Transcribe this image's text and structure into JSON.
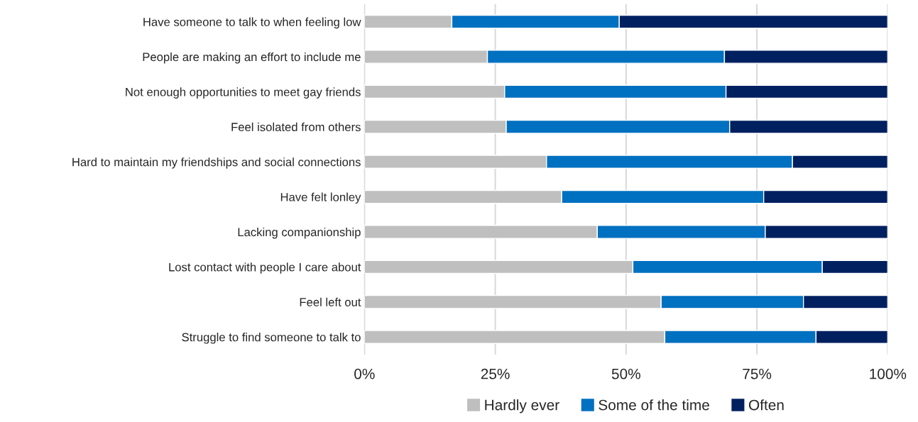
{
  "chart_data": {
    "type": "bar",
    "orientation": "horizontal",
    "stacked": true,
    "categories": [
      "Have someone to talk to when feeling low",
      "People are making an effort to include me",
      "Not enough opportunities to meet gay friends",
      "Feel isolated from others",
      "Hard to maintain my friendships and social connections",
      "Have felt lonley",
      "Lacking companionship",
      "Lost contact with people I care about",
      "Feel left out",
      "Struggle to find someone to talk to"
    ],
    "series": [
      {
        "name": "Hardly ever",
        "color": "#bfbfbf",
        "values": [
          16.7,
          23.5,
          26.8,
          27.1,
          34.8,
          37.7,
          44.5,
          51.3,
          56.7,
          57.4
        ]
      },
      {
        "name": "Some of the time",
        "color": "#0070c0",
        "values": [
          32.0,
          45.3,
          42.3,
          42.7,
          47.0,
          38.6,
          32.1,
          36.2,
          27.2,
          28.9
        ]
      },
      {
        "name": "Often",
        "color": "#002060",
        "values": [
          51.3,
          31.2,
          30.9,
          30.2,
          18.2,
          23.7,
          23.4,
          12.5,
          16.1,
          13.7
        ]
      }
    ],
    "xlim": [
      0,
      100
    ],
    "xticks": [
      {
        "value": 0,
        "label": "0%"
      },
      {
        "value": 25,
        "label": "25%"
      },
      {
        "value": 50,
        "label": "50%"
      },
      {
        "value": 75,
        "label": "75%"
      },
      {
        "value": 100,
        "label": "100%"
      }
    ],
    "grid": "x",
    "legend": "bottom"
  }
}
